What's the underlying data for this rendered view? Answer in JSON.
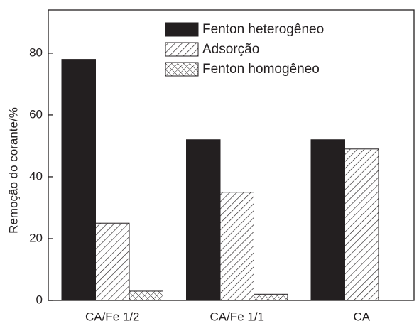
{
  "chart_data": {
    "type": "bar",
    "y_label": "Remoção do corante/%",
    "categories": [
      "CA/Fe 1/2",
      "CA/Fe 1/1",
      "CA"
    ],
    "series": [
      {
        "name": "Fenton heterogêneo",
        "color": "#231f20",
        "pattern": "solid",
        "values": [
          78,
          52,
          52
        ]
      },
      {
        "name": "Adsorção",
        "color": "#231f20",
        "pattern": "diagonal",
        "values": [
          25,
          35,
          49
        ]
      },
      {
        "name": "Fenton homogêneo",
        "color": "#231f20",
        "pattern": "crosshatch",
        "values": [
          3,
          2,
          null
        ]
      }
    ],
    "ylim": [
      0,
      94
    ],
    "yticks": [
      0,
      20,
      40,
      60,
      80
    ]
  }
}
